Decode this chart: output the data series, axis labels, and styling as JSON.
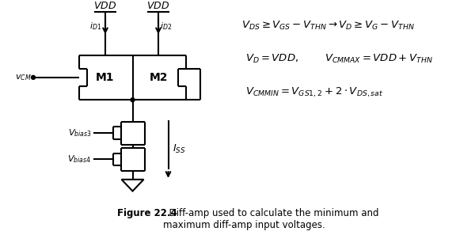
{
  "bg_color": "#ffffff",
  "fig_caption_bold": "Figure 22.4",
  "fig_caption_normal": "  Diff-amp used to calculate the minimum and\nmaximum diff-amp input voltages.",
  "eq1": "$V_{DS} \\geq V_{GS} - V_{THN} \\rightarrow V_D \\geq V_G - V_{THN}$",
  "eq2": "$V_D = VDD,$",
  "eq2b": "$V_{CMMAX} = VDD + V_{THN}$",
  "eq3": "$V_{CMMIN} = V_{GS1,2} + 2 \\cdot V_{DS,sat}$",
  "label_VDD1": "$VDD$",
  "label_VDD2": "$VDD$",
  "label_iD1": "$i_{D1}$",
  "label_iD2": "$i_{D2}$",
  "label_vCM": "$v_{CM}$",
  "label_M1": "M1",
  "label_M2": "M2",
  "label_Vbias3": "$V_{bias3}$",
  "label_Vbias4": "$V_{bias4}$",
  "label_ISS": "$I_{SS}$"
}
